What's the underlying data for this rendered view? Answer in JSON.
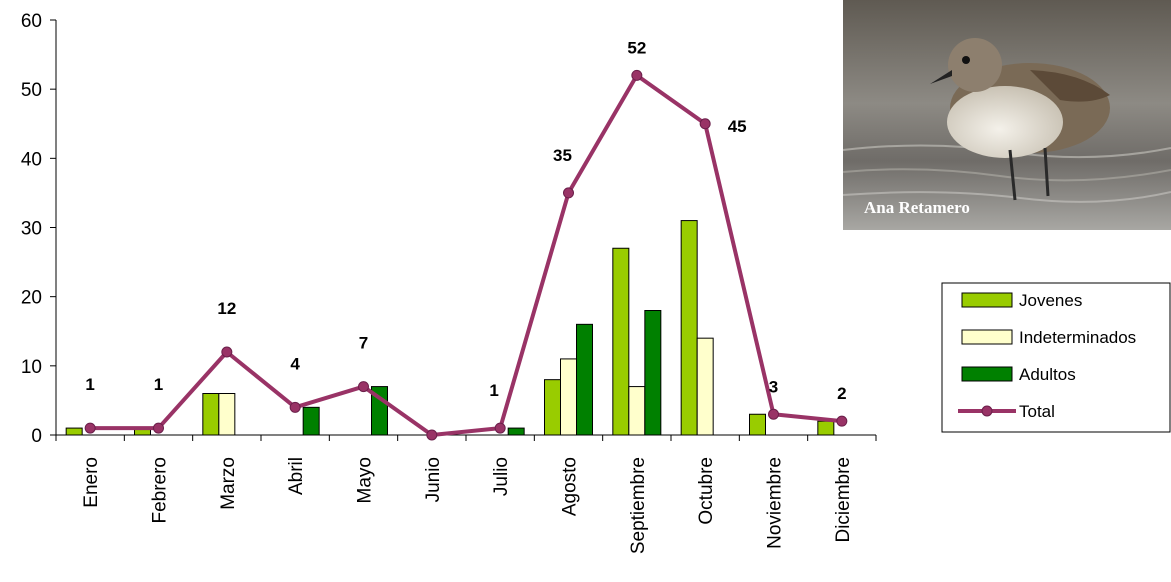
{
  "chart_data": {
    "type": "bar",
    "categories": [
      "Enero",
      "Febrero",
      "Marzo",
      "Abril",
      "Mayo",
      "Junio",
      "Julio",
      "Agosto",
      "Septiembre",
      "Octubre",
      "Noviembre",
      "Diciembre"
    ],
    "series": [
      {
        "name": "Jovenes",
        "kind": "bar",
        "color": "#99cc00",
        "values": [
          1,
          1,
          6,
          0,
          0,
          0,
          0,
          8,
          27,
          31,
          3,
          2
        ]
      },
      {
        "name": "Indeterminados",
        "kind": "bar",
        "color": "#ffffcc",
        "values": [
          0,
          0,
          6,
          0,
          0,
          0,
          0,
          11,
          7,
          14,
          0,
          0
        ]
      },
      {
        "name": "Adultos",
        "kind": "bar",
        "color": "#008000",
        "values": [
          0,
          0,
          0,
          4,
          7,
          0,
          1,
          16,
          18,
          0,
          0,
          0
        ]
      },
      {
        "name": "Total",
        "kind": "line",
        "color": "#993366",
        "values": [
          1,
          1,
          12,
          4,
          7,
          0,
          1,
          35,
          52,
          45,
          3,
          2
        ]
      }
    ],
    "data_labels": [
      "1",
      "1",
      "12",
      "4",
      "7",
      "",
      "1",
      "35",
      "52",
      "45",
      "3",
      "2"
    ],
    "y_ticks": [
      "0",
      "10",
      "20",
      "30",
      "40",
      "50",
      "60"
    ],
    "ylim": [
      0,
      60
    ],
    "legend_position": "right",
    "grid": false
  },
  "photo": {
    "credit": "Ana Retamero",
    "subject": "bird-photo"
  }
}
